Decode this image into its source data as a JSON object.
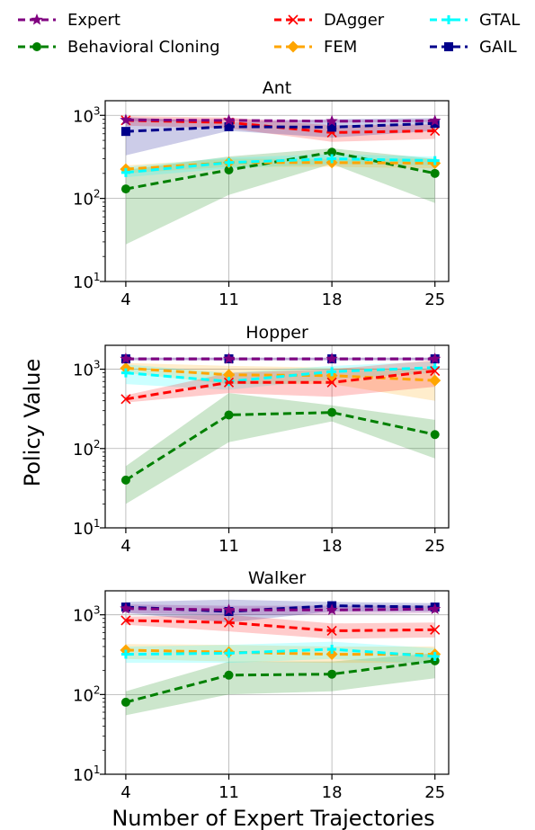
{
  "legend": {
    "items": [
      {
        "label": "Expert",
        "color": "#800080",
        "marker": "star"
      },
      {
        "label": "Behavioral Cloning",
        "color": "#008000",
        "marker": "circle"
      },
      {
        "label": "DAgger",
        "color": "#ff0000",
        "marker": "x"
      },
      {
        "label": "FEM",
        "color": "#ffa500",
        "marker": "diamond"
      },
      {
        "label": "GTAL",
        "color": "#00ffff",
        "marker": "plus"
      },
      {
        "label": "GAIL",
        "color": "#00008b",
        "marker": "square"
      }
    ]
  },
  "ylabel": "Policy Value",
  "xlabel": "Number of Expert Trajectories",
  "chart_data": [
    {
      "type": "line",
      "title": "Ant",
      "x": [
        4,
        11,
        18,
        25
      ],
      "yscale": "log",
      "ylim": [
        10,
        1500
      ],
      "yticks": [
        "10^1",
        "10^2",
        "10^3"
      ],
      "grid": true,
      "series": [
        {
          "name": "Expert",
          "values": [
            880,
            870,
            850,
            860
          ],
          "band": [
            [
              850,
              920
            ],
            [
              840,
              900
            ],
            [
              820,
              880
            ],
            [
              830,
              890
            ]
          ]
        },
        {
          "name": "DAgger",
          "values": [
            870,
            820,
            620,
            650
          ],
          "band": [
            [
              750,
              980
            ],
            [
              700,
              940
            ],
            [
              480,
              760
            ],
            [
              520,
              780
            ]
          ]
        },
        {
          "name": "GAIL",
          "values": [
            640,
            730,
            720,
            800
          ],
          "band": [
            [
              330,
              950
            ],
            [
              650,
              820
            ],
            [
              540,
              900
            ],
            [
              650,
              930
            ]
          ]
        },
        {
          "name": "Behavioral Cloning",
          "values": [
            130,
            220,
            360,
            200
          ],
          "band": [
            [
              28,
              220
            ],
            [
              110,
              320
            ],
            [
              260,
              400
            ],
            [
              88,
              300
            ]
          ]
        },
        {
          "name": "FEM",
          "values": [
            225,
            270,
            270,
            265
          ],
          "band": [
            [
              200,
              250
            ],
            [
              240,
              300
            ],
            [
              240,
              300
            ],
            [
              230,
              300
            ]
          ]
        },
        {
          "name": "GTAL",
          "values": [
            205,
            270,
            300,
            285
          ],
          "band": [
            [
              180,
              240
            ],
            [
              230,
              310
            ],
            [
              260,
              340
            ],
            [
              250,
              320
            ]
          ]
        }
      ]
    },
    {
      "type": "line",
      "title": "Hopper",
      "x": [
        4,
        11,
        18,
        25
      ],
      "yscale": "log",
      "ylim": [
        10,
        2000
      ],
      "yticks": [
        "10^1",
        "10^2",
        "10^3"
      ],
      "grid": true,
      "series": [
        {
          "name": "Expert",
          "values": [
            1350,
            1350,
            1350,
            1350
          ],
          "band": [
            [
              1300,
              1400
            ],
            [
              1300,
              1400
            ],
            [
              1300,
              1400
            ],
            [
              1300,
              1400
            ]
          ]
        },
        {
          "name": "GAIL",
          "values": [
            1350,
            1350,
            1350,
            1350
          ],
          "band": [
            [
              1300,
              1400
            ],
            [
              1300,
              1400
            ],
            [
              1300,
              1400
            ],
            [
              1300,
              1400
            ]
          ]
        },
        {
          "name": "DAgger",
          "values": [
            420,
            680,
            680,
            950
          ],
          "band": [
            [
              380,
              470
            ],
            [
              500,
              900
            ],
            [
              450,
              1000
            ],
            [
              600,
              1300
            ]
          ]
        },
        {
          "name": "FEM",
          "values": [
            1030,
            850,
            830,
            720
          ],
          "band": [
            [
              900,
              1200
            ],
            [
              650,
              1100
            ],
            [
              650,
              1050
            ],
            [
              400,
              1000
            ]
          ]
        },
        {
          "name": "GTAL",
          "values": [
            900,
            700,
            930,
            1050
          ],
          "band": [
            [
              650,
              1150
            ],
            [
              550,
              900
            ],
            [
              750,
              1100
            ],
            [
              900,
              1250
            ]
          ]
        },
        {
          "name": "Behavioral Cloning",
          "values": [
            40,
            265,
            285,
            150
          ],
          "band": [
            [
              20,
              60
            ],
            [
              120,
              500
            ],
            [
              220,
              350
            ],
            [
              75,
              230
            ]
          ]
        }
      ]
    },
    {
      "type": "line",
      "title": "Walker",
      "x": [
        4,
        11,
        18,
        25
      ],
      "yscale": "log",
      "ylim": [
        10,
        2000
      ],
      "yticks": [
        "10^1",
        "10^2",
        "10^3"
      ],
      "grid": true,
      "series": [
        {
          "name": "Expert",
          "values": [
            1200,
            1150,
            1150,
            1180
          ],
          "band": [
            [
              1050,
              1350
            ],
            [
              1000,
              1300
            ],
            [
              1000,
              1300
            ],
            [
              1050,
              1300
            ]
          ]
        },
        {
          "name": "GAIL",
          "values": [
            1250,
            1100,
            1300,
            1250
          ],
          "band": [
            [
              1050,
              1450
            ],
            [
              800,
              1550
            ],
            [
              1100,
              1450
            ],
            [
              1100,
              1400
            ]
          ]
        },
        {
          "name": "DAgger",
          "values": [
            850,
            800,
            630,
            650
          ],
          "band": [
            [
              750,
              950
            ],
            [
              620,
              1000
            ],
            [
              500,
              780
            ],
            [
              520,
              800
            ]
          ]
        },
        {
          "name": "FEM",
          "values": [
            360,
            340,
            320,
            320
          ],
          "band": [
            [
              280,
              430
            ],
            [
              260,
              420
            ],
            [
              250,
              400
            ],
            [
              250,
              400
            ]
          ]
        },
        {
          "name": "GTAL",
          "values": [
            320,
            330,
            370,
            300
          ],
          "band": [
            [
              250,
              400
            ],
            [
              250,
              420
            ],
            [
              280,
              460
            ],
            [
              240,
              380
            ]
          ]
        },
        {
          "name": "Behavioral Cloning",
          "values": [
            80,
            175,
            180,
            265
          ],
          "band": [
            [
              55,
              110
            ],
            [
              100,
              260
            ],
            [
              110,
              260
            ],
            [
              160,
              330
            ]
          ]
        }
      ]
    }
  ]
}
